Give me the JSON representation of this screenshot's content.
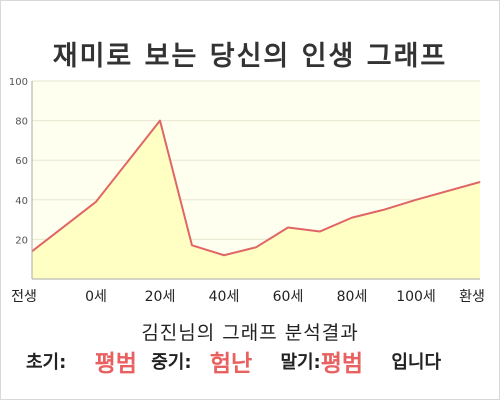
{
  "title": "재미로 보는 당신의 인생 그래프",
  "summary": {
    "heading": "김진님의 그래프 분석결과",
    "early_label": "초기:",
    "early_value": "평범",
    "middle_label": "중기:",
    "middle_value": "험난",
    "late_label": "말기:",
    "late_value": "평범",
    "closing": "입니다"
  },
  "colors": {
    "line": "#e06666",
    "area": "#ffffc4",
    "plot_bg": "#fffff0",
    "grid": "#e6e6d0",
    "accent_text": "#e86060"
  },
  "chart_data": {
    "type": "area",
    "title": "재미로 보는 당신의 인생 그래프",
    "x_tick_labels": [
      "전생",
      "0세",
      "20세",
      "40세",
      "60세",
      "80세",
      "100세",
      "환생"
    ],
    "y_tick_labels": [
      "20",
      "40",
      "60",
      "80",
      "100"
    ],
    "ylim": [
      0,
      100
    ],
    "grid": true,
    "series": [
      {
        "points": [
          {
            "x": -20,
            "y": 14
          },
          {
            "x": 0,
            "y": 39
          },
          {
            "x": 20,
            "y": 80
          },
          {
            "x": 30,
            "y": 17
          },
          {
            "x": 40,
            "y": 12
          },
          {
            "x": 50,
            "y": 16
          },
          {
            "x": 60,
            "y": 26
          },
          {
            "x": 70,
            "y": 24
          },
          {
            "x": 80,
            "y": 31
          },
          {
            "x": 90,
            "y": 35
          },
          {
            "x": 100,
            "y": 40
          },
          {
            "x": 120,
            "y": 49
          }
        ]
      }
    ]
  }
}
